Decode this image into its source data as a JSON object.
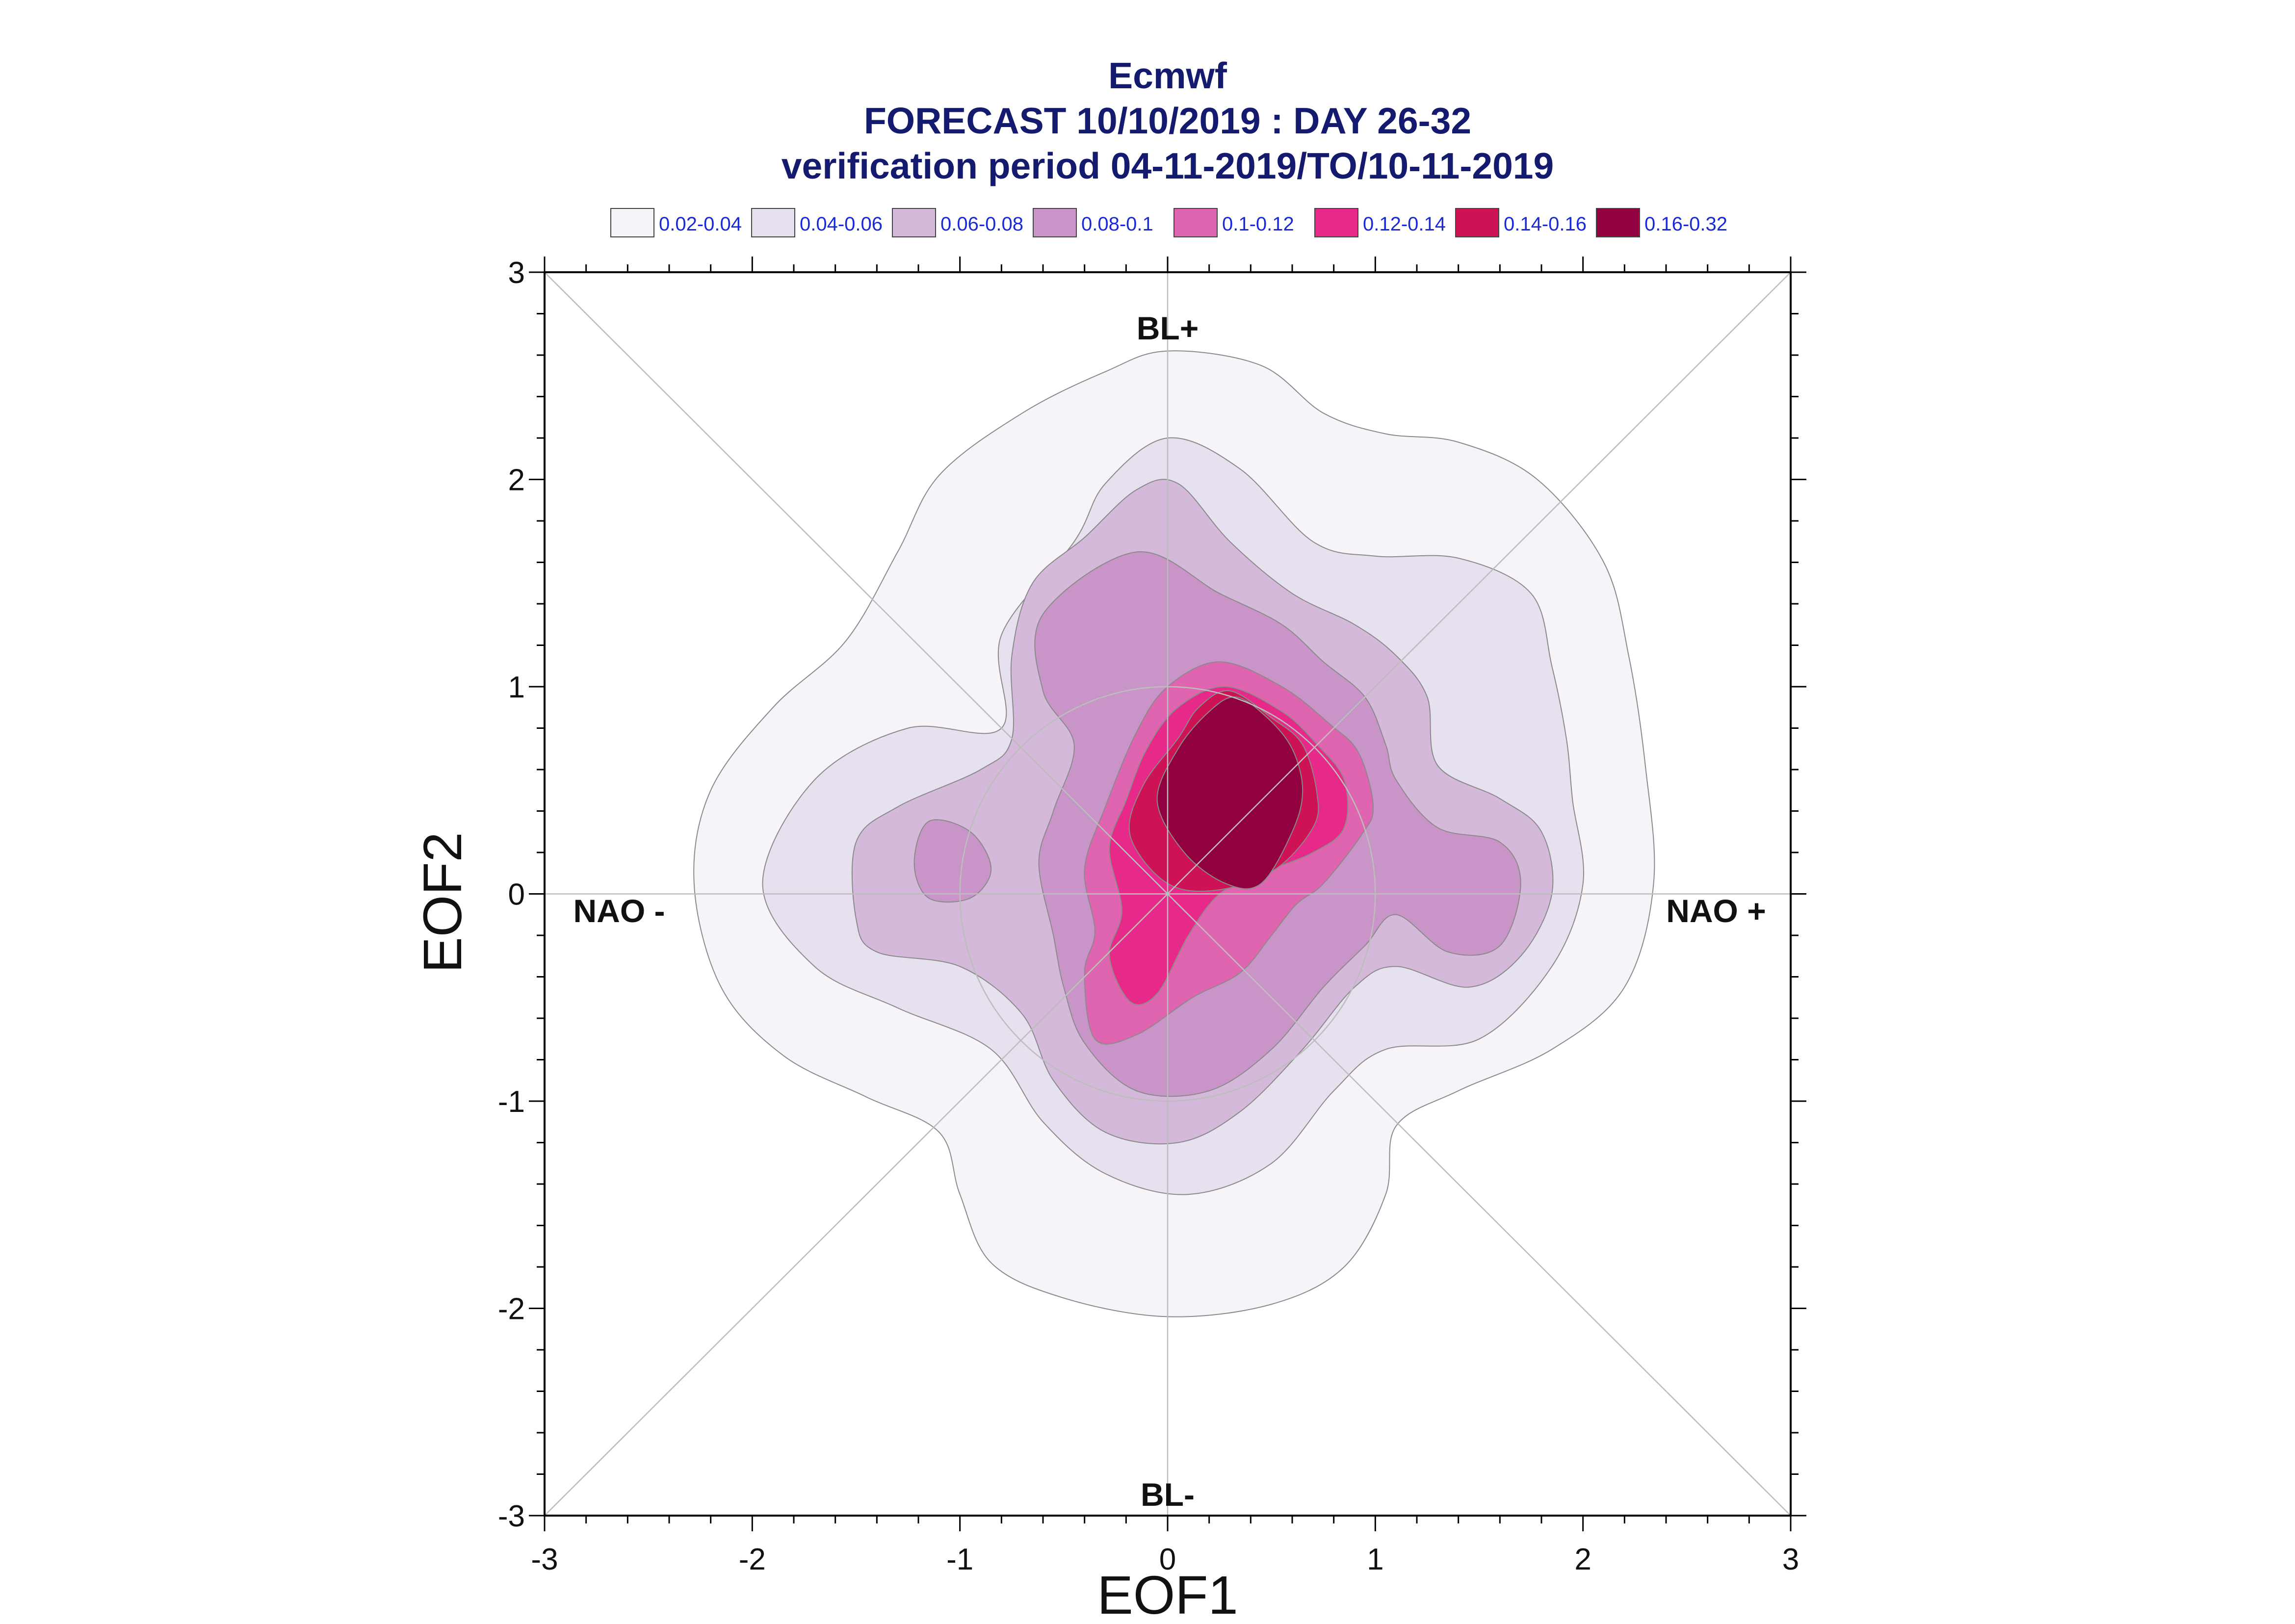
{
  "chart_data": {
    "type": "contour",
    "title_lines": [
      "Ecmwf",
      "FORECAST 10/10/2019 : DAY 26-32",
      "verification period 04-11-2019/TO/10-11-2019"
    ],
    "xlabel": "EOF1",
    "ylabel": "EOF2",
    "xlim": [
      -3,
      3
    ],
    "ylim": [
      -3,
      3
    ],
    "xticks": [
      "-3",
      "-2",
      "-1",
      "0",
      "1",
      "2",
      "3"
    ],
    "yticks": [
      "-3",
      "-2",
      "-1",
      "0",
      "1",
      "2",
      "3"
    ],
    "grid": false,
    "regime_labels": {
      "top": "BL+",
      "bottom": "BL-",
      "left": "NAO -",
      "right": "NAO +"
    },
    "reference_circle_radius": 1,
    "legend_position": "top",
    "legend": [
      {
        "label": "0.02-0.04",
        "color": "#f7f4f9"
      },
      {
        "label": "0.04-0.06",
        "color": "#e7e1ef"
      },
      {
        "label": "0.06-0.08",
        "color": "#d4b9da"
      },
      {
        "label": "0.08-0.1",
        "color": "#c994c7"
      },
      {
        "label": "0.1-0.12",
        "color": "#df65b0"
      },
      {
        "label": "0.12-0.14",
        "color": "#e7298a"
      },
      {
        "label": "0.14-0.16",
        "color": "#ce1256"
      },
      {
        "label": "0.16-0.32",
        "color": "#91003f"
      }
    ],
    "density_levels": [
      {
        "level": "0.02-0.04",
        "color": "#f7f4f9",
        "boundary": [
          [
            0,
            2.62
          ],
          [
            0.45,
            2.55
          ],
          [
            0.75,
            2.32
          ],
          [
            1.05,
            2.22
          ],
          [
            1.4,
            2.18
          ],
          [
            1.78,
            2.0
          ],
          [
            2.1,
            1.6
          ],
          [
            2.22,
            1.15
          ],
          [
            2.3,
            0.62
          ],
          [
            2.34,
            0.05
          ],
          [
            2.2,
            -0.45
          ],
          [
            1.85,
            -0.75
          ],
          [
            1.4,
            -0.95
          ],
          [
            1.1,
            -1.12
          ],
          [
            1.05,
            -1.45
          ],
          [
            0.85,
            -1.8
          ],
          [
            0.5,
            -1.98
          ],
          [
            0,
            -2.04
          ],
          [
            -0.5,
            -1.95
          ],
          [
            -0.85,
            -1.78
          ],
          [
            -1.0,
            -1.45
          ],
          [
            -1.1,
            -1.15
          ],
          [
            -1.45,
            -0.98
          ],
          [
            -1.85,
            -0.78
          ],
          [
            -2.15,
            -0.45
          ],
          [
            -2.28,
            0.05
          ],
          [
            -2.2,
            0.5
          ],
          [
            -1.9,
            0.9
          ],
          [
            -1.55,
            1.22
          ],
          [
            -1.3,
            1.65
          ],
          [
            -1.1,
            2.02
          ],
          [
            -0.7,
            2.32
          ],
          [
            -0.3,
            2.52
          ]
        ]
      },
      {
        "level": "0.04-0.06",
        "color": "#e7e1ef",
        "boundary": [
          [
            0,
            2.2
          ],
          [
            0.35,
            2.05
          ],
          [
            0.7,
            1.7
          ],
          [
            1.0,
            1.63
          ],
          [
            1.4,
            1.62
          ],
          [
            1.75,
            1.45
          ],
          [
            1.85,
            1.1
          ],
          [
            1.92,
            0.75
          ],
          [
            1.95,
            0.45
          ],
          [
            2.0,
            0.05
          ],
          [
            1.85,
            -0.35
          ],
          [
            1.5,
            -0.7
          ],
          [
            1.05,
            -0.75
          ],
          [
            0.8,
            -0.95
          ],
          [
            0.5,
            -1.3
          ],
          [
            0.1,
            -1.45
          ],
          [
            -0.3,
            -1.35
          ],
          [
            -0.6,
            -1.1
          ],
          [
            -0.85,
            -0.75
          ],
          [
            -1.3,
            -0.55
          ],
          [
            -1.7,
            -0.35
          ],
          [
            -1.95,
            0.05
          ],
          [
            -1.7,
            0.55
          ],
          [
            -1.25,
            0.8
          ],
          [
            -0.8,
            0.8
          ],
          [
            -0.8,
            1.25
          ],
          [
            -0.45,
            1.7
          ],
          [
            -0.3,
            1.98
          ]
        ]
      },
      {
        "level": "0.06-0.08",
        "color": "#d4b9da",
        "boundary": [
          [
            0.05,
            1.98
          ],
          [
            0.3,
            1.7
          ],
          [
            0.6,
            1.45
          ],
          [
            0.9,
            1.3
          ],
          [
            1.1,
            1.15
          ],
          [
            1.25,
            0.95
          ],
          [
            1.3,
            0.62
          ],
          [
            1.6,
            0.46
          ],
          [
            1.8,
            0.3
          ],
          [
            1.85,
            0.0
          ],
          [
            1.7,
            -0.3
          ],
          [
            1.45,
            -0.45
          ],
          [
            1.1,
            -0.35
          ],
          [
            0.9,
            -0.45
          ],
          [
            0.65,
            -0.75
          ],
          [
            0.35,
            -1.05
          ],
          [
            0.05,
            -1.2
          ],
          [
            -0.3,
            -1.15
          ],
          [
            -0.55,
            -0.9
          ],
          [
            -0.7,
            -0.58
          ],
          [
            -1.0,
            -0.35
          ],
          [
            -1.4,
            -0.28
          ],
          [
            -1.5,
            -0.12
          ],
          [
            -1.5,
            0.25
          ],
          [
            -1.3,
            0.42
          ],
          [
            -0.9,
            0.6
          ],
          [
            -0.75,
            0.75
          ],
          [
            -0.75,
            1.15
          ],
          [
            -0.65,
            1.5
          ],
          [
            -0.4,
            1.72
          ],
          [
            -0.15,
            1.95
          ]
        ]
      },
      {
        "level": "0.08-0.1",
        "color": "#c994c7",
        "boundary": [
          [
            -0.15,
            1.65
          ],
          [
            0.25,
            1.45
          ],
          [
            0.55,
            1.3
          ],
          [
            0.75,
            1.12
          ],
          [
            0.95,
            0.95
          ],
          [
            1.05,
            0.72
          ],
          [
            1.1,
            0.55
          ],
          [
            1.3,
            0.32
          ],
          [
            1.6,
            0.25
          ],
          [
            1.7,
            0.05
          ],
          [
            1.6,
            -0.25
          ],
          [
            1.35,
            -0.28
          ],
          [
            1.1,
            -0.1
          ],
          [
            0.95,
            -0.25
          ],
          [
            0.75,
            -0.45
          ],
          [
            0.5,
            -0.75
          ],
          [
            0.2,
            -0.95
          ],
          [
            -0.15,
            -0.95
          ],
          [
            -0.4,
            -0.72
          ],
          [
            -0.5,
            -0.45
          ],
          [
            -0.55,
            -0.2
          ],
          [
            -0.62,
            0.15
          ],
          [
            -0.55,
            0.4
          ],
          [
            -0.45,
            0.72
          ],
          [
            -0.6,
            0.98
          ],
          [
            -0.6,
            1.35
          ]
        ]
      },
      {
        "level": "0.08-0.1",
        "color": "#c994c7",
        "boundary": [
          [
            -1.15,
            0.35
          ],
          [
            -0.95,
            0.3
          ],
          [
            -0.85,
            0.12
          ],
          [
            -0.95,
            -0.02
          ],
          [
            -1.15,
            -0.02
          ],
          [
            -1.22,
            0.15
          ]
        ]
      },
      {
        "level": "0.1-0.12",
        "color": "#df65b0",
        "boundary": [
          [
            0.25,
            1.12
          ],
          [
            0.55,
            1.0
          ],
          [
            0.78,
            0.82
          ],
          [
            0.92,
            0.68
          ],
          [
            0.99,
            0.42
          ],
          [
            0.93,
            0.28
          ],
          [
            0.75,
            0.05
          ],
          [
            0.62,
            -0.05
          ],
          [
            0.5,
            -0.2
          ],
          [
            0.35,
            -0.38
          ],
          [
            0.12,
            -0.5
          ],
          [
            -0.15,
            -0.68
          ],
          [
            -0.35,
            -0.7
          ],
          [
            -0.4,
            -0.38
          ],
          [
            -0.35,
            -0.18
          ],
          [
            -0.4,
            0.12
          ],
          [
            -0.3,
            0.42
          ],
          [
            -0.15,
            0.78
          ],
          [
            0.0,
            1.0
          ]
        ]
      },
      {
        "level": "0.12-0.14",
        "color": "#e7298a",
        "boundary": [
          [
            0.28,
            1.0
          ],
          [
            0.55,
            0.88
          ],
          [
            0.72,
            0.72
          ],
          [
            0.85,
            0.55
          ],
          [
            0.85,
            0.32
          ],
          [
            0.7,
            0.2
          ],
          [
            0.45,
            0.1
          ],
          [
            0.25,
            0.0
          ],
          [
            0.1,
            -0.2
          ],
          [
            -0.05,
            -0.48
          ],
          [
            -0.18,
            -0.52
          ],
          [
            -0.28,
            -0.3
          ],
          [
            -0.22,
            -0.08
          ],
          [
            -0.28,
            0.22
          ],
          [
            -0.2,
            0.45
          ],
          [
            -0.1,
            0.7
          ],
          [
            0.05,
            0.9
          ]
        ]
      },
      {
        "level": "0.14-0.16",
        "color": "#ce1256",
        "boundary": [
          [
            0.3,
            0.98
          ],
          [
            0.5,
            0.85
          ],
          [
            0.65,
            0.72
          ],
          [
            0.72,
            0.48
          ],
          [
            0.7,
            0.32
          ],
          [
            0.52,
            0.12
          ],
          [
            0.25,
            0.02
          ],
          [
            0.0,
            0.05
          ],
          [
            -0.18,
            0.28
          ],
          [
            -0.12,
            0.52
          ],
          [
            0.05,
            0.75
          ],
          [
            0.15,
            0.9
          ]
        ]
      },
      {
        "level": "0.16-0.32",
        "color": "#91003f",
        "boundary": [
          [
            0.33,
            0.95
          ],
          [
            0.48,
            0.85
          ],
          [
            0.6,
            0.7
          ],
          [
            0.65,
            0.5
          ],
          [
            0.6,
            0.3
          ],
          [
            0.45,
            0.05
          ],
          [
            0.28,
            0.05
          ],
          [
            0.08,
            0.2
          ],
          [
            -0.05,
            0.45
          ],
          [
            0.05,
            0.7
          ],
          [
            0.2,
            0.88
          ]
        ]
      }
    ]
  }
}
